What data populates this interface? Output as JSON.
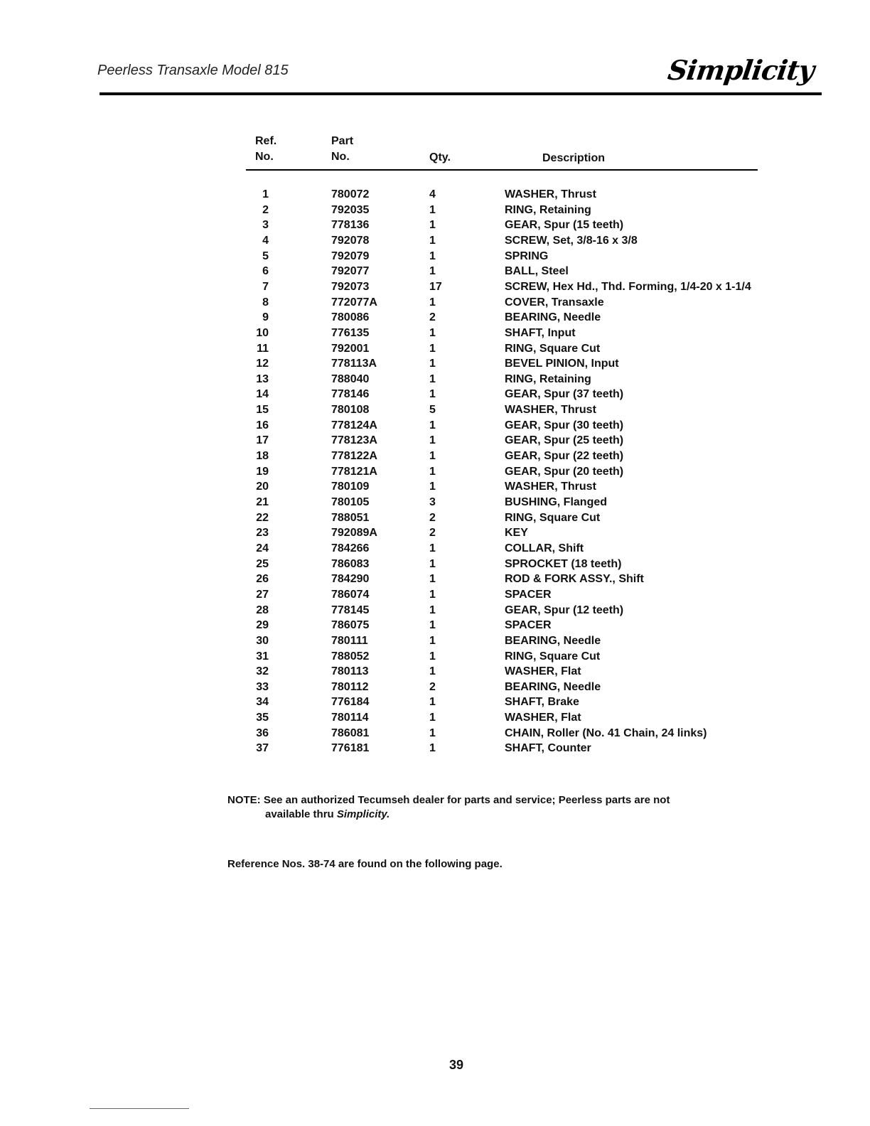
{
  "header": {
    "title": "Peerless Transaxle Model 815",
    "logo_text": "Simplicity"
  },
  "table": {
    "headers": {
      "ref": [
        "Ref.",
        "No."
      ],
      "part": [
        "Part",
        "No."
      ],
      "qty": "Qty.",
      "desc": "Description"
    },
    "rows": [
      [
        "1",
        "780072",
        "4",
        "WASHER, Thrust"
      ],
      [
        "2",
        "792035",
        "1",
        "RING, Retaining"
      ],
      [
        "3",
        "778136",
        "1",
        "GEAR, Spur (15 teeth)"
      ],
      [
        "4",
        "792078",
        "1",
        "SCREW, Set, 3/8-16 x 3/8"
      ],
      [
        "5",
        "792079",
        "1",
        "SPRING"
      ],
      [
        "6",
        "792077",
        "1",
        "BALL, Steel"
      ],
      [
        "7",
        "792073",
        "17",
        "SCREW, Hex Hd., Thd. Forming, 1/4-20 x 1-1/4"
      ],
      [
        "8",
        "772077A",
        "1",
        "COVER, Transaxle"
      ],
      [
        "9",
        "780086",
        "2",
        "BEARING, Needle"
      ],
      [
        "10",
        "776135",
        "1",
        "SHAFT, Input"
      ],
      [
        "11",
        "792001",
        "1",
        "RING, Square Cut"
      ],
      [
        "12",
        "778113A",
        "1",
        "BEVEL PINION, Input"
      ],
      [
        "13",
        "788040",
        "1",
        "RING, Retaining"
      ],
      [
        "14",
        "778146",
        "1",
        "GEAR, Spur (37 teeth)"
      ],
      [
        "15",
        "780108",
        "5",
        "WASHER, Thrust"
      ],
      [
        "16",
        "778124A",
        "1",
        "GEAR, Spur (30 teeth)"
      ],
      [
        "17",
        "778123A",
        "1",
        "GEAR, Spur (25 teeth)"
      ],
      [
        "18",
        "778122A",
        "1",
        "GEAR, Spur (22 teeth)"
      ],
      [
        "19",
        "778121A",
        "1",
        "GEAR, Spur (20 teeth)"
      ],
      [
        "20",
        "780109",
        "1",
        "WASHER, Thrust"
      ],
      [
        "21",
        "780105",
        "3",
        "BUSHING, Flanged"
      ],
      [
        "22",
        "788051",
        "2",
        "RING, Square Cut"
      ],
      [
        "23",
        "792089A",
        "2",
        "KEY"
      ],
      [
        "24",
        "784266",
        "1",
        "COLLAR, Shift"
      ],
      [
        "25",
        "786083",
        "1",
        "SPROCKET (18 teeth)"
      ],
      [
        "26",
        "784290",
        "1",
        "ROD & FORK ASSY., Shift"
      ],
      [
        "27",
        "786074",
        "1",
        "SPACER"
      ],
      [
        "28",
        "778145",
        "1",
        "GEAR, Spur (12 teeth)"
      ],
      [
        "29",
        "786075",
        "1",
        "SPACER"
      ],
      [
        "30",
        "780111",
        "1",
        "BEARING, Needle"
      ],
      [
        "31",
        "788052",
        "1",
        "RING, Square Cut"
      ],
      [
        "32",
        "780113",
        "1",
        "WASHER, Flat"
      ],
      [
        "33",
        "780112",
        "2",
        "BEARING, Needle"
      ],
      [
        "34",
        "776184",
        "1",
        "SHAFT, Brake"
      ],
      [
        "35",
        "780114",
        "1",
        "WASHER, Flat"
      ],
      [
        "36",
        "786081",
        "1",
        "CHAIN, Roller (No. 41 Chain, 24 links)"
      ],
      [
        "37",
        "776181",
        "1",
        "SHAFT, Counter"
      ]
    ]
  },
  "note": {
    "line1": "NOTE: See an authorized Tecumseh dealer for parts and service; Peerless parts are not",
    "line2_prefix": "available thru ",
    "line2_brand": "Simplicity."
  },
  "reference": "Reference Nos. 38-74 are found on the following page.",
  "page_number": "39"
}
